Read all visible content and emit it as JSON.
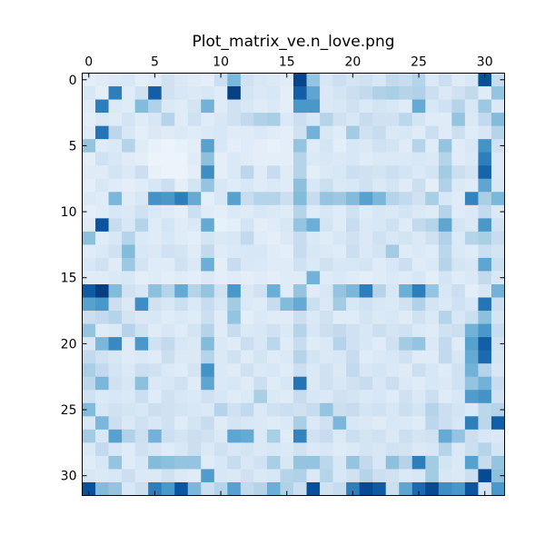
{
  "chart_data": {
    "type": "heatmap",
    "title": "Plot_matrix_ve.n_love.png",
    "xlabel": "",
    "ylabel": "",
    "rows": 32,
    "cols": 32,
    "x_ticks": [
      0,
      5,
      10,
      15,
      20,
      25,
      30
    ],
    "y_ticks": [
      0,
      5,
      10,
      15,
      20,
      25,
      30
    ],
    "x_axis_position": "top",
    "colormap": "Blues",
    "color_range": [
      0,
      1
    ],
    "grid": false,
    "values": [
      [
        0.1,
        0.12,
        0.14,
        0.16,
        0.1,
        0.12,
        0.2,
        0.14,
        0.12,
        0.1,
        0.22,
        0.46,
        0.2,
        0.16,
        0.14,
        0.12,
        0.92,
        0.4,
        0.16,
        0.22,
        0.18,
        0.2,
        0.16,
        0.26,
        0.24,
        0.3,
        0.14,
        0.22,
        0.12,
        0.16,
        0.88,
        0.24
      ],
      [
        0.16,
        0.1,
        0.7,
        0.12,
        0.2,
        0.82,
        0.2,
        0.16,
        0.14,
        0.16,
        0.12,
        0.94,
        0.18,
        0.14,
        0.16,
        0.1,
        0.82,
        0.54,
        0.14,
        0.18,
        0.22,
        0.26,
        0.32,
        0.34,
        0.3,
        0.32,
        0.22,
        0.14,
        0.2,
        0.26,
        0.12,
        0.4
      ],
      [
        0.12,
        0.7,
        0.14,
        0.12,
        0.44,
        0.32,
        0.14,
        0.12,
        0.18,
        0.48,
        0.12,
        0.2,
        0.16,
        0.12,
        0.14,
        0.1,
        0.6,
        0.6,
        0.14,
        0.16,
        0.2,
        0.14,
        0.18,
        0.16,
        0.12,
        0.52,
        0.16,
        0.2,
        0.3,
        0.16,
        0.38,
        0.14
      ],
      [
        0.1,
        0.14,
        0.12,
        0.18,
        0.12,
        0.16,
        0.3,
        0.12,
        0.2,
        0.12,
        0.16,
        0.2,
        0.26,
        0.32,
        0.34,
        0.14,
        0.22,
        0.16,
        0.3,
        0.2,
        0.16,
        0.24,
        0.2,
        0.2,
        0.28,
        0.18,
        0.12,
        0.12,
        0.4,
        0.14,
        0.26,
        0.44
      ],
      [
        0.12,
        0.74,
        0.28,
        0.16,
        0.1,
        0.14,
        0.12,
        0.14,
        0.12,
        0.14,
        0.16,
        0.12,
        0.12,
        0.14,
        0.12,
        0.1,
        0.2,
        0.48,
        0.16,
        0.12,
        0.36,
        0.2,
        0.24,
        0.14,
        0.16,
        0.12,
        0.22,
        0.12,
        0.22,
        0.12,
        0.16,
        0.3
      ],
      [
        0.4,
        0.12,
        0.14,
        0.3,
        0.12,
        0.08,
        0.06,
        0.08,
        0.1,
        0.56,
        0.16,
        0.1,
        0.12,
        0.1,
        0.08,
        0.1,
        0.4,
        0.12,
        0.18,
        0.1,
        0.16,
        0.14,
        0.2,
        0.18,
        0.12,
        0.3,
        0.12,
        0.4,
        0.12,
        0.16,
        0.62,
        0.2
      ],
      [
        0.1,
        0.2,
        0.16,
        0.12,
        0.1,
        0.06,
        0.06,
        0.06,
        0.12,
        0.42,
        0.1,
        0.14,
        0.12,
        0.1,
        0.1,
        0.1,
        0.3,
        0.14,
        0.16,
        0.14,
        0.16,
        0.12,
        0.14,
        0.14,
        0.14,
        0.16,
        0.14,
        0.3,
        0.12,
        0.14,
        0.7,
        0.14
      ],
      [
        0.12,
        0.12,
        0.18,
        0.14,
        0.22,
        0.08,
        0.06,
        0.06,
        0.1,
        0.64,
        0.1,
        0.14,
        0.28,
        0.12,
        0.24,
        0.12,
        0.3,
        0.1,
        0.14,
        0.16,
        0.22,
        0.2,
        0.18,
        0.22,
        0.18,
        0.14,
        0.18,
        0.36,
        0.22,
        0.18,
        0.8,
        0.14
      ],
      [
        0.1,
        0.16,
        0.12,
        0.1,
        0.12,
        0.16,
        0.22,
        0.1,
        0.18,
        0.4,
        0.16,
        0.12,
        0.16,
        0.12,
        0.14,
        0.12,
        0.42,
        0.16,
        0.22,
        0.14,
        0.16,
        0.2,
        0.14,
        0.18,
        0.12,
        0.22,
        0.1,
        0.32,
        0.14,
        0.12,
        0.54,
        0.16
      ],
      [
        0.14,
        0.12,
        0.46,
        0.12,
        0.16,
        0.62,
        0.6,
        0.7,
        0.52,
        0.1,
        0.16,
        0.56,
        0.24,
        0.3,
        0.3,
        0.22,
        0.44,
        0.24,
        0.4,
        0.38,
        0.44,
        0.56,
        0.46,
        0.3,
        0.26,
        0.2,
        0.34,
        0.16,
        0.12,
        0.68,
        0.34,
        0.46
      ],
      [
        0.1,
        0.12,
        0.16,
        0.14,
        0.2,
        0.14,
        0.12,
        0.1,
        0.22,
        0.12,
        0.1,
        0.14,
        0.12,
        0.16,
        0.14,
        0.12,
        0.3,
        0.12,
        0.16,
        0.12,
        0.2,
        0.12,
        0.16,
        0.14,
        0.18,
        0.14,
        0.12,
        0.3,
        0.12,
        0.14,
        0.26,
        0.14
      ],
      [
        0.12,
        0.86,
        0.24,
        0.16,
        0.3,
        0.12,
        0.18,
        0.12,
        0.14,
        0.52,
        0.08,
        0.1,
        0.18,
        0.1,
        0.12,
        0.16,
        0.4,
        0.5,
        0.18,
        0.12,
        0.24,
        0.14,
        0.16,
        0.2,
        0.12,
        0.26,
        0.3,
        0.54,
        0.18,
        0.14,
        0.6,
        0.2
      ],
      [
        0.42,
        0.12,
        0.16,
        0.3,
        0.14,
        0.12,
        0.16,
        0.12,
        0.1,
        0.18,
        0.14,
        0.16,
        0.26,
        0.12,
        0.1,
        0.14,
        0.24,
        0.14,
        0.12,
        0.16,
        0.2,
        0.14,
        0.2,
        0.16,
        0.18,
        0.14,
        0.2,
        0.32,
        0.14,
        0.3,
        0.34,
        0.24
      ],
      [
        0.12,
        0.14,
        0.2,
        0.44,
        0.16,
        0.14,
        0.2,
        0.18,
        0.12,
        0.26,
        0.12,
        0.14,
        0.16,
        0.16,
        0.12,
        0.1,
        0.24,
        0.16,
        0.14,
        0.12,
        0.22,
        0.14,
        0.18,
        0.36,
        0.12,
        0.14,
        0.12,
        0.28,
        0.14,
        0.12,
        0.22,
        0.18
      ],
      [
        0.16,
        0.2,
        0.12,
        0.38,
        0.18,
        0.12,
        0.12,
        0.2,
        0.14,
        0.5,
        0.1,
        0.24,
        0.16,
        0.14,
        0.12,
        0.12,
        0.2,
        0.14,
        0.2,
        0.16,
        0.16,
        0.18,
        0.12,
        0.16,
        0.22,
        0.12,
        0.14,
        0.3,
        0.18,
        0.16,
        0.54,
        0.22
      ],
      [
        0.12,
        0.12,
        0.14,
        0.16,
        0.1,
        0.12,
        0.1,
        0.12,
        0.1,
        0.14,
        0.1,
        0.12,
        0.1,
        0.12,
        0.1,
        0.12,
        0.12,
        0.48,
        0.12,
        0.14,
        0.12,
        0.1,
        0.12,
        0.14,
        0.12,
        0.16,
        0.1,
        0.18,
        0.12,
        0.14,
        0.26,
        0.16
      ],
      [
        0.84,
        0.95,
        0.44,
        0.2,
        0.16,
        0.42,
        0.3,
        0.52,
        0.3,
        0.4,
        0.2,
        0.6,
        0.14,
        0.2,
        0.5,
        0.12,
        0.4,
        0.12,
        0.16,
        0.4,
        0.46,
        0.7,
        0.3,
        0.16,
        0.5,
        0.7,
        0.4,
        0.16,
        0.22,
        0.1,
        0.16,
        0.48
      ],
      [
        0.56,
        0.6,
        0.22,
        0.14,
        0.64,
        0.2,
        0.16,
        0.22,
        0.14,
        0.24,
        0.16,
        0.36,
        0.14,
        0.12,
        0.24,
        0.44,
        0.52,
        0.22,
        0.14,
        0.36,
        0.16,
        0.2,
        0.16,
        0.14,
        0.2,
        0.32,
        0.18,
        0.14,
        0.2,
        0.16,
        0.74,
        0.22
      ],
      [
        0.22,
        0.26,
        0.3,
        0.18,
        0.14,
        0.16,
        0.12,
        0.14,
        0.12,
        0.22,
        0.12,
        0.4,
        0.1,
        0.14,
        0.12,
        0.12,
        0.22,
        0.14,
        0.2,
        0.12,
        0.12,
        0.18,
        0.14,
        0.16,
        0.12,
        0.2,
        0.14,
        0.3,
        0.16,
        0.22,
        0.42,
        0.18
      ],
      [
        0.4,
        0.12,
        0.14,
        0.3,
        0.2,
        0.12,
        0.16,
        0.12,
        0.18,
        0.3,
        0.12,
        0.24,
        0.14,
        0.16,
        0.2,
        0.14,
        0.3,
        0.16,
        0.22,
        0.26,
        0.2,
        0.16,
        0.22,
        0.18,
        0.2,
        0.14,
        0.12,
        0.2,
        0.22,
        0.48,
        0.6,
        0.24
      ],
      [
        0.16,
        0.46,
        0.66,
        0.12,
        0.6,
        0.2,
        0.26,
        0.16,
        0.14,
        0.44,
        0.14,
        0.12,
        0.22,
        0.16,
        0.28,
        0.12,
        0.24,
        0.12,
        0.14,
        0.3,
        0.2,
        0.16,
        0.12,
        0.2,
        0.36,
        0.4,
        0.14,
        0.26,
        0.12,
        0.56,
        0.82,
        0.2
      ],
      [
        0.26,
        0.2,
        0.16,
        0.12,
        0.14,
        0.12,
        0.22,
        0.14,
        0.14,
        0.3,
        0.14,
        0.2,
        0.12,
        0.18,
        0.12,
        0.14,
        0.3,
        0.18,
        0.14,
        0.16,
        0.24,
        0.12,
        0.14,
        0.16,
        0.2,
        0.12,
        0.12,
        0.26,
        0.16,
        0.52,
        0.78,
        0.18
      ],
      [
        0.34,
        0.26,
        0.18,
        0.14,
        0.22,
        0.2,
        0.14,
        0.12,
        0.18,
        0.62,
        0.14,
        0.12,
        0.2,
        0.14,
        0.16,
        0.12,
        0.22,
        0.14,
        0.2,
        0.14,
        0.26,
        0.16,
        0.18,
        0.14,
        0.12,
        0.22,
        0.16,
        0.12,
        0.2,
        0.48,
        0.3,
        0.16
      ],
      [
        0.28,
        0.46,
        0.2,
        0.16,
        0.42,
        0.14,
        0.16,
        0.2,
        0.12,
        0.54,
        0.14,
        0.16,
        0.12,
        0.22,
        0.12,
        0.16,
        0.74,
        0.14,
        0.2,
        0.16,
        0.2,
        0.24,
        0.16,
        0.22,
        0.14,
        0.12,
        0.16,
        0.14,
        0.2,
        0.4,
        0.48,
        0.24
      ],
      [
        0.2,
        0.14,
        0.16,
        0.14,
        0.22,
        0.12,
        0.2,
        0.16,
        0.14,
        0.2,
        0.16,
        0.12,
        0.14,
        0.34,
        0.14,
        0.12,
        0.24,
        0.16,
        0.14,
        0.2,
        0.18,
        0.14,
        0.16,
        0.12,
        0.2,
        0.14,
        0.22,
        0.12,
        0.16,
        0.58,
        0.62,
        0.2
      ],
      [
        0.44,
        0.16,
        0.2,
        0.18,
        0.16,
        0.22,
        0.2,
        0.18,
        0.16,
        0.14,
        0.3,
        0.2,
        0.26,
        0.14,
        0.2,
        0.22,
        0.2,
        0.24,
        0.4,
        0.22,
        0.24,
        0.18,
        0.2,
        0.16,
        0.22,
        0.18,
        0.3,
        0.22,
        0.18,
        0.14,
        0.28,
        0.3
      ],
      [
        0.16,
        0.46,
        0.22,
        0.14,
        0.2,
        0.16,
        0.2,
        0.12,
        0.18,
        0.24,
        0.12,
        0.18,
        0.16,
        0.14,
        0.12,
        0.14,
        0.34,
        0.14,
        0.2,
        0.46,
        0.16,
        0.14,
        0.12,
        0.16,
        0.14,
        0.12,
        0.28,
        0.22,
        0.16,
        0.7,
        0.28,
        0.82
      ],
      [
        0.36,
        0.16,
        0.56,
        0.32,
        0.22,
        0.48,
        0.22,
        0.18,
        0.22,
        0.2,
        0.14,
        0.54,
        0.52,
        0.14,
        0.34,
        0.12,
        0.68,
        0.2,
        0.24,
        0.14,
        0.22,
        0.18,
        0.2,
        0.14,
        0.22,
        0.18,
        0.2,
        0.52,
        0.4,
        0.22,
        0.16,
        0.14
      ],
      [
        0.14,
        0.26,
        0.16,
        0.12,
        0.2,
        0.16,
        0.12,
        0.16,
        0.22,
        0.14,
        0.2,
        0.16,
        0.18,
        0.14,
        0.16,
        0.14,
        0.2,
        0.14,
        0.16,
        0.12,
        0.14,
        0.18,
        0.16,
        0.2,
        0.18,
        0.14,
        0.16,
        0.3,
        0.14,
        0.22,
        0.3,
        0.18
      ],
      [
        0.12,
        0.16,
        0.4,
        0.12,
        0.16,
        0.44,
        0.42,
        0.4,
        0.4,
        0.12,
        0.16,
        0.24,
        0.16,
        0.2,
        0.34,
        0.16,
        0.4,
        0.4,
        0.28,
        0.16,
        0.4,
        0.26,
        0.16,
        0.42,
        0.3,
        0.7,
        0.36,
        0.18,
        0.14,
        0.56,
        0.24,
        0.4
      ],
      [
        0.16,
        0.14,
        0.16,
        0.22,
        0.14,
        0.14,
        0.2,
        0.14,
        0.12,
        0.58,
        0.16,
        0.14,
        0.2,
        0.14,
        0.16,
        0.3,
        0.32,
        0.14,
        0.3,
        0.16,
        0.2,
        0.3,
        0.22,
        0.2,
        0.14,
        0.16,
        0.36,
        0.16,
        0.14,
        0.22,
        0.9,
        0.42
      ],
      [
        0.88,
        0.44,
        0.4,
        0.16,
        0.22,
        0.7,
        0.6,
        0.86,
        0.46,
        0.22,
        0.3,
        0.56,
        0.26,
        0.3,
        0.5,
        0.32,
        0.22,
        0.88,
        0.2,
        0.24,
        0.7,
        0.9,
        0.84,
        0.22,
        0.54,
        0.78,
        0.9,
        0.64,
        0.6,
        0.86,
        0.18,
        0.6
      ]
    ]
  }
}
